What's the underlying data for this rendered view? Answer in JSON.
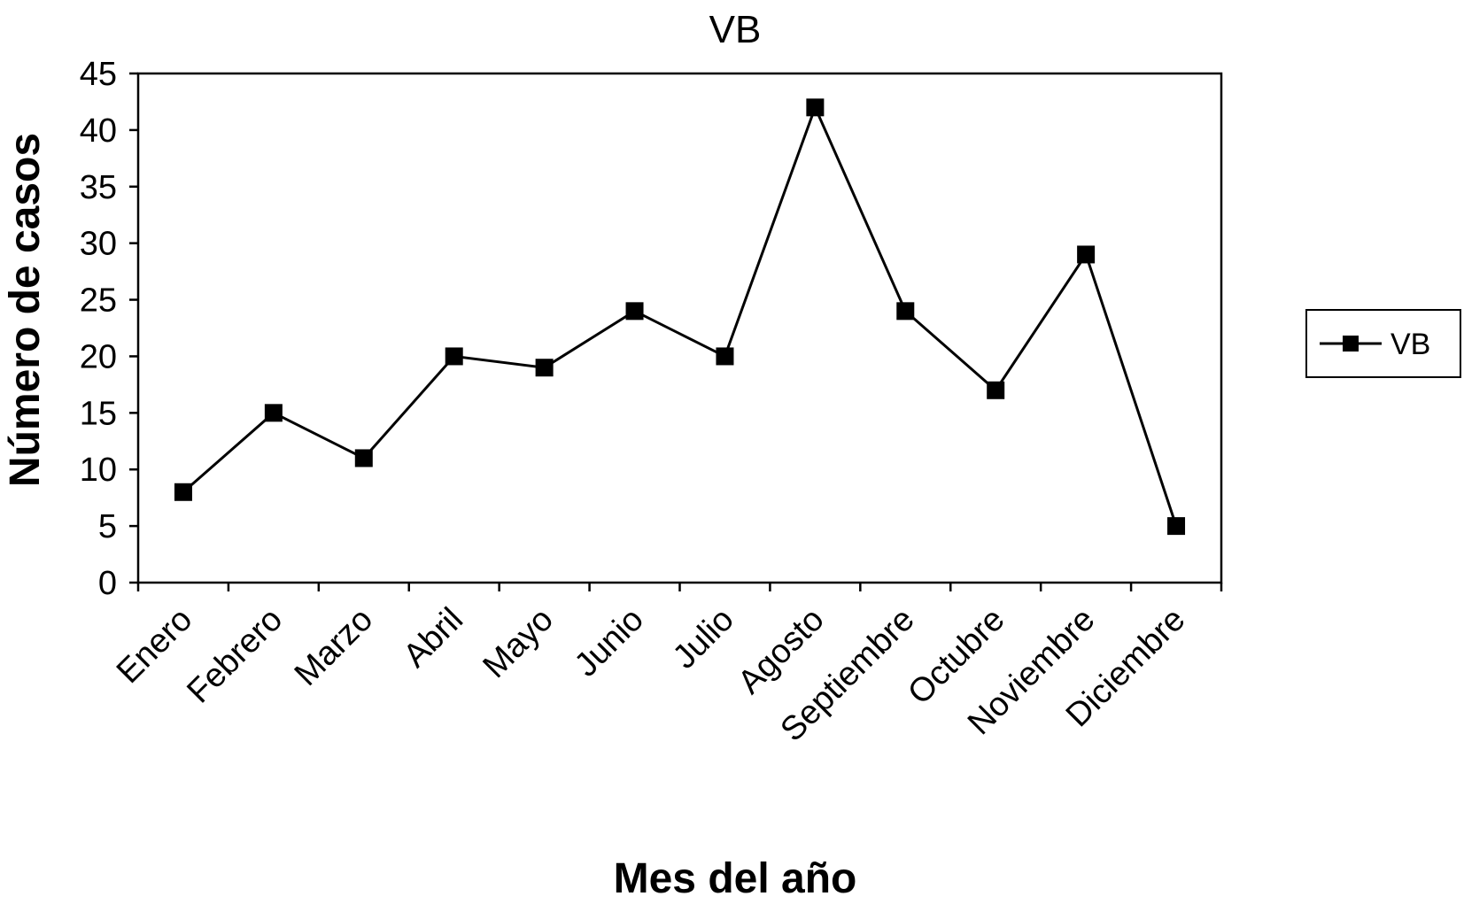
{
  "chart_data": {
    "type": "line",
    "title": "VB",
    "xlabel": "Mes del año",
    "ylabel": "Número de casos",
    "categories": [
      "Enero",
      "Febrero",
      "Marzo",
      "Abril",
      "Mayo",
      "Junio",
      "Julio",
      "Agosto",
      "Septiembre",
      "Octubre",
      "Noviembre",
      "Diciembre"
    ],
    "series": [
      {
        "name": "VB",
        "values": [
          8,
          15,
          11,
          20,
          19,
          24,
          20,
          42,
          24,
          17,
          29,
          5
        ]
      }
    ],
    "ylim": [
      0,
      45
    ],
    "yticks": [
      0,
      5,
      10,
      15,
      20,
      25,
      30,
      35,
      40,
      45
    ],
    "grid": false,
    "legend": "right",
    "line_color": "#000000",
    "marker": "square"
  }
}
